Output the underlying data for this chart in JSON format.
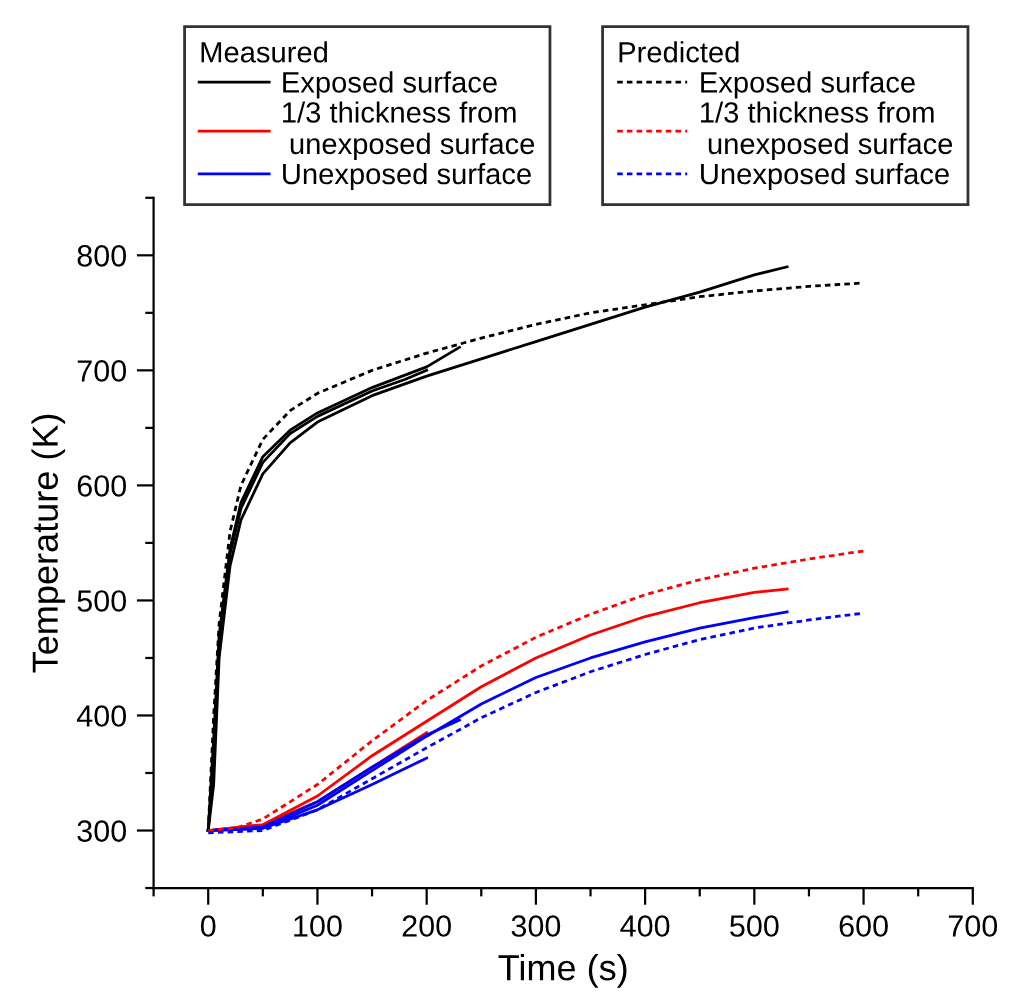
{
  "chart_data": {
    "type": "line",
    "xlabel": "Time (s)",
    "ylabel": "Temperature (K)",
    "legend_title": [
      "Measured",
      "Predicted"
    ],
    "xlim": [
      -50,
      700
    ],
    "ylim": [
      250,
      850
    ],
    "xticks": [
      {
        "value": -50,
        "label": null
      },
      0,
      {
        "value": 50,
        "label": null
      },
      100,
      {
        "value": 150,
        "label": null
      },
      200,
      {
        "value": 250,
        "label": null
      },
      300,
      {
        "value": 350,
        "label": null
      },
      400,
      {
        "value": 450,
        "label": null
      },
      500,
      {
        "value": 550,
        "label": null
      },
      600,
      {
        "value": 650,
        "label": null
      },
      700
    ],
    "yticks": [
      {
        "value": 250,
        "label": null
      },
      300,
      {
        "value": 350,
        "label": null
      },
      400,
      {
        "value": 450,
        "label": null
      },
      500,
      {
        "value": 550,
        "label": null
      },
      600,
      {
        "value": 650,
        "label": null
      },
      700,
      {
        "value": 750,
        "label": null
      },
      800,
      {
        "value": 850,
        "label": null
      }
    ],
    "grid": false,
    "legend": "top",
    "marker": "none",
    "series": [
      {
        "name": "Exposed surface",
        "color": "#000000",
        "line_style": "solid",
        "x": [
          0,
          5,
          10,
          20,
          30,
          50,
          75,
          100,
          150,
          200,
          250,
          300,
          350,
          400,
          450,
          500,
          530
        ],
        "values": [
          300,
          340,
          450,
          530,
          570,
          610,
          637,
          655,
          678,
          695,
          710,
          725,
          740,
          755,
          768,
          783,
          790
        ]
      },
      {
        "color": "#000000",
        "line_style": "solid",
        "x": [
          0,
          5,
          10,
          20,
          30,
          50,
          75,
          100,
          150,
          200,
          230
        ],
        "values": [
          300,
          380,
          470,
          545,
          585,
          625,
          648,
          663,
          685,
          703,
          720
        ]
      },
      {
        "color": "#000000",
        "line_style": "solid",
        "x": [
          0,
          5,
          10,
          20,
          30,
          50,
          75,
          100,
          150,
          180,
          200
        ],
        "values": [
          300,
          360,
          460,
          540,
          580,
          620,
          645,
          660,
          682,
          692,
          700
        ]
      },
      {
        "name": "1/3 thickness from\n unexposed surface",
        "color": "#ff0000",
        "line_style": "solid",
        "x": [
          0,
          50,
          100,
          150,
          200,
          250,
          300,
          350,
          400,
          450,
          500,
          530
        ],
        "values": [
          300,
          305,
          330,
          365,
          395,
          425,
          450,
          470,
          486,
          498,
          507,
          510
        ]
      },
      {
        "color": "#ff0000",
        "line_style": "solid",
        "x": [
          0,
          50,
          100,
          150,
          200
        ],
        "values": [
          300,
          305,
          325,
          355,
          385
        ]
      },
      {
        "name": "Unexposed surface",
        "color": "#0000ff",
        "line_style": "solid",
        "x": [
          0,
          50,
          100,
          150,
          200,
          250,
          300,
          350,
          400,
          450,
          500,
          530
        ],
        "values": [
          300,
          302,
          322,
          352,
          382,
          410,
          433,
          450,
          464,
          476,
          485,
          490
        ]
      },
      {
        "color": "#0000ff",
        "line_style": "solid",
        "x": [
          0,
          50,
          100,
          150,
          200,
          230
        ],
        "values": [
          300,
          303,
          325,
          355,
          383,
          396
        ]
      },
      {
        "color": "#0000ff",
        "line_style": "solid",
        "x": [
          0,
          50,
          100,
          150,
          200
        ],
        "values": [
          300,
          302,
          318,
          340,
          363
        ]
      },
      {
        "name": "Exposed surface",
        "color": "#000000",
        "line_style": "dashed",
        "x": [
          0,
          5,
          10,
          20,
          30,
          50,
          75,
          100,
          150,
          200,
          250,
          300,
          350,
          400,
          450,
          500,
          550,
          600
        ],
        "values": [
          300,
          400,
          480,
          560,
          600,
          640,
          665,
          680,
          700,
          715,
          728,
          740,
          750,
          757,
          764,
          769,
          773,
          776
        ]
      },
      {
        "name": "1/3 thickness from\n unexposed surface",
        "color": "#ff0000",
        "line_style": "dashed",
        "x": [
          0,
          25,
          50,
          100,
          150,
          200,
          250,
          300,
          350,
          400,
          450,
          500,
          550,
          600
        ],
        "values": [
          300,
          302,
          310,
          340,
          378,
          413,
          443,
          468,
          488,
          505,
          518,
          528,
          536,
          543
        ]
      },
      {
        "name": "Unexposed surface",
        "color": "#0000ff",
        "line_style": "dashed",
        "x": [
          0,
          50,
          100,
          150,
          200,
          250,
          300,
          350,
          400,
          450,
          500,
          550,
          600
        ],
        "values": [
          298,
          300,
          318,
          345,
          372,
          398,
          420,
          438,
          453,
          466,
          476,
          483,
          489
        ]
      }
    ]
  }
}
